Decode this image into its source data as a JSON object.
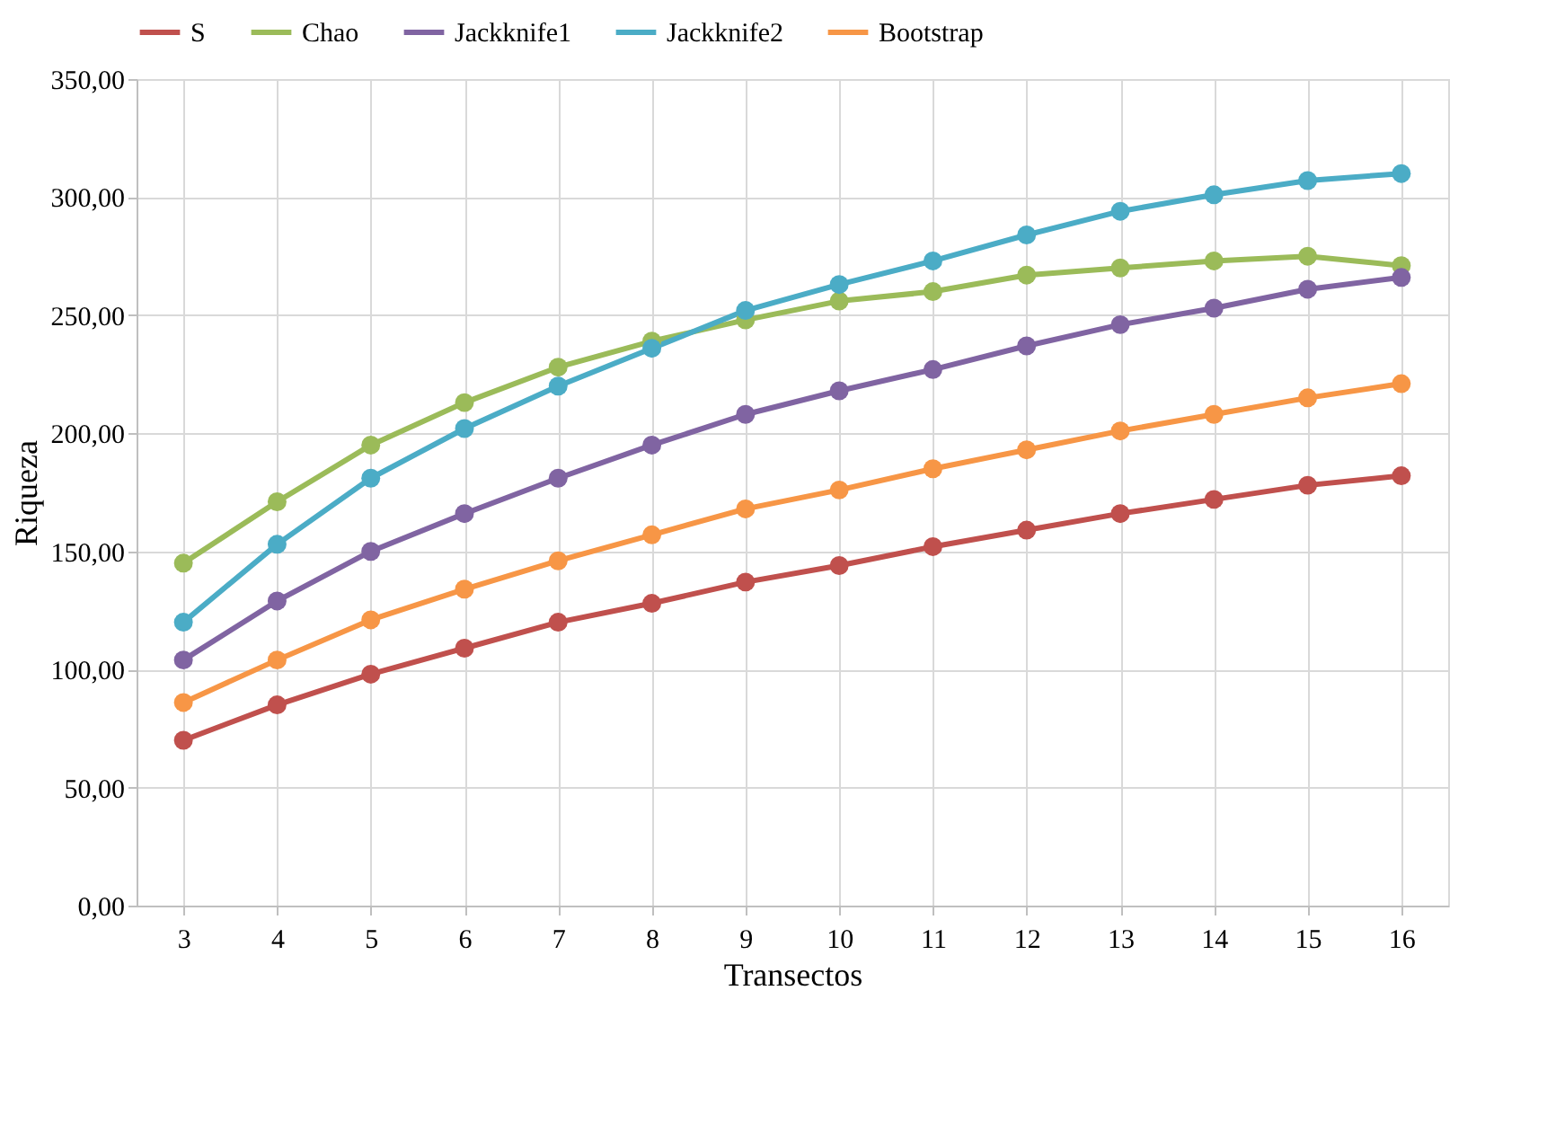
{
  "chart_data": {
    "type": "line",
    "xlabel": "Transectos",
    "ylabel": "Riqueza",
    "categories": [
      "3",
      "4",
      "5",
      "6",
      "7",
      "8",
      "9",
      "10",
      "11",
      "12",
      "13",
      "14",
      "15",
      "16"
    ],
    "series": [
      {
        "name": "S",
        "color": "#c0504d",
        "values": [
          70,
          85,
          98,
          109,
          120,
          128,
          137,
          144,
          152,
          159,
          166,
          172,
          178,
          182
        ]
      },
      {
        "name": "Chao",
        "color": "#9bbb59",
        "values": [
          145,
          171,
          195,
          213,
          228,
          239,
          248,
          256,
          260,
          267,
          270,
          273,
          275,
          271
        ]
      },
      {
        "name": "Jackknife1",
        "color": "#8064a2",
        "values": [
          104,
          129,
          150,
          166,
          181,
          195,
          208,
          218,
          227,
          237,
          246,
          253,
          261,
          266
        ]
      },
      {
        "name": "Jackknife2",
        "color": "#4bacc6",
        "values": [
          120,
          153,
          181,
          202,
          220,
          236,
          252,
          263,
          273,
          284,
          294,
          301,
          307,
          310
        ]
      },
      {
        "name": "Bootstrap",
        "color": "#f79646",
        "values": [
          86,
          104,
          121,
          134,
          146,
          157,
          168,
          176,
          185,
          193,
          201,
          208,
          215,
          221
        ]
      }
    ],
    "ylim": [
      0,
      350
    ],
    "yticks": [
      {
        "value": 0,
        "label": "0,00"
      },
      {
        "value": 50,
        "label": "50,00"
      },
      {
        "value": 100,
        "label": "100,00"
      },
      {
        "value": 150,
        "label": "150,00"
      },
      {
        "value": 200,
        "label": "200,00"
      },
      {
        "value": 250,
        "label": "250,00"
      },
      {
        "value": 300,
        "label": "300,00"
      },
      {
        "value": 350,
        "label": "350,00"
      }
    ],
    "grid": true,
    "legend": "top",
    "marker": "circle",
    "line_style": "solid"
  }
}
